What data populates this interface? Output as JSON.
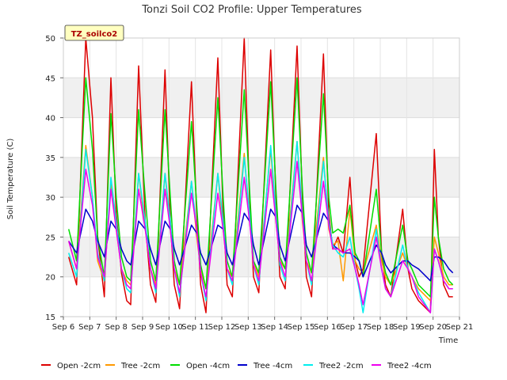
{
  "chart_data": {
    "type": "line",
    "title": "Tonzi Soil CO2 Profile: Upper Temperatures",
    "xlabel": "Time",
    "ylabel": "Soil Temperature (C)",
    "badge": "TZ_soilco2",
    "xlim": [
      6,
      21
    ],
    "ylim": [
      15,
      50
    ],
    "x_ticks": [
      {
        "v": 6,
        "label": "Sep 6"
      },
      {
        "v": 7,
        "label": "Sep 7"
      },
      {
        "v": 8,
        "label": "Sep 8"
      },
      {
        "v": 9,
        "label": "Sep 9"
      },
      {
        "v": 10,
        "label": "Sep 10"
      },
      {
        "v": 11,
        "label": "Sep 11"
      },
      {
        "v": 12,
        "label": "Sep 12"
      },
      {
        "v": 13,
        "label": "Sep 13"
      },
      {
        "v": 14,
        "label": "Sep 14"
      },
      {
        "v": 15,
        "label": "Sep 15"
      },
      {
        "v": 16,
        "label": "Sep 16"
      },
      {
        "v": 17,
        "label": "Sep 17"
      },
      {
        "v": 18,
        "label": "Sep 18"
      },
      {
        "v": 19,
        "label": "Sep 19"
      },
      {
        "v": 20,
        "label": "Sep 20"
      },
      {
        "v": 21,
        "label": "Sep 21"
      }
    ],
    "y_ticks": [
      {
        "v": 15,
        "label": "15"
      },
      {
        "v": 20,
        "label": "20"
      },
      {
        "v": 25,
        "label": "25"
      },
      {
        "v": 30,
        "label": "30"
      },
      {
        "v": 35,
        "label": "35"
      },
      {
        "v": 40,
        "label": "40"
      },
      {
        "v": 45,
        "label": "45"
      },
      {
        "v": 50,
        "label": "50"
      }
    ],
    "shaded_bands": [
      [
        20,
        25
      ],
      [
        30,
        35
      ],
      [
        40,
        45
      ]
    ],
    "grid": true,
    "legend_position": "bottom",
    "series": [
      {
        "name": "Open -2cm",
        "color": "#dd0000",
        "x": [
          6.2,
          6.5,
          6.85,
          7.1,
          7.3,
          7.55,
          7.8,
          8.0,
          8.2,
          8.4,
          8.55,
          8.85,
          9.1,
          9.3,
          9.5,
          9.85,
          10.05,
          10.2,
          10.4,
          10.85,
          11.05,
          11.2,
          11.4,
          11.85,
          12.05,
          12.2,
          12.4,
          12.85,
          13.05,
          13.2,
          13.4,
          13.85,
          14.05,
          14.2,
          14.4,
          14.85,
          15.05,
          15.2,
          15.4,
          15.85,
          16.05,
          16.2,
          16.4,
          16.6,
          16.85,
          17.05,
          17.2,
          17.35,
          17.85,
          18.05,
          18.2,
          18.4,
          18.85,
          19.05,
          19.2,
          19.45,
          19.9,
          20.05,
          20.2,
          20.4,
          20.6,
          20.75
        ],
        "y": [
          22.5,
          19,
          50,
          40,
          25,
          17.5,
          45,
          28,
          20.5,
          17,
          16.5,
          46.5,
          27,
          19,
          16.8,
          46,
          27,
          19,
          16,
          44.5,
          28,
          19,
          15.5,
          47.5,
          28,
          19,
          17.5,
          50,
          30,
          20,
          18,
          48.5,
          30,
          20,
          18.5,
          49,
          30,
          20,
          17.5,
          48,
          28,
          23.5,
          25,
          23,
          32.5,
          22,
          20,
          21,
          38,
          23,
          19,
          17.5,
          28.5,
          21,
          18.5,
          17,
          15.5,
          36,
          25,
          19,
          17.5,
          17.5
        ]
      },
      {
        "name": "Tree -2cm",
        "color": "#ff9900",
        "x": [
          6.2,
          6.5,
          6.85,
          7.1,
          7.3,
          7.55,
          7.8,
          8.0,
          8.2,
          8.4,
          8.55,
          8.85,
          9.1,
          9.3,
          9.5,
          9.85,
          10.05,
          10.2,
          10.4,
          10.85,
          11.05,
          11.2,
          11.4,
          11.85,
          12.05,
          12.2,
          12.4,
          12.85,
          13.05,
          13.2,
          13.4,
          13.85,
          14.05,
          14.2,
          14.4,
          14.85,
          15.05,
          15.2,
          15.4,
          15.85,
          16.05,
          16.2,
          16.4,
          16.6,
          16.85,
          17.05,
          17.2,
          17.35,
          17.85,
          18.05,
          18.2,
          18.4,
          18.85,
          19.05,
          19.2,
          19.45,
          19.9,
          20.05,
          20.2,
          20.4,
          20.6,
          20.75
        ],
        "y": [
          24.5,
          21,
          36.5,
          30,
          22,
          19.5,
          32,
          26,
          21,
          19.5,
          19,
          33,
          26,
          21,
          19,
          33,
          26,
          21,
          19,
          32,
          25,
          21,
          18.5,
          33,
          26,
          21,
          20,
          35.5,
          27,
          22,
          20,
          36,
          27,
          22,
          21,
          37,
          27,
          22,
          20.5,
          35,
          26,
          24,
          24.5,
          19.5,
          28.5,
          22,
          21,
          20.5,
          26.5,
          22,
          20,
          19,
          23,
          21,
          20,
          18.5,
          17,
          25,
          23,
          20,
          19,
          19
        ]
      },
      {
        "name": "Open -4cm",
        "color": "#00dd00",
        "x": [
          6.2,
          6.5,
          6.85,
          7.1,
          7.3,
          7.55,
          7.8,
          8.0,
          8.2,
          8.4,
          8.55,
          8.85,
          9.1,
          9.3,
          9.5,
          9.85,
          10.05,
          10.2,
          10.4,
          10.85,
          11.05,
          11.2,
          11.4,
          11.85,
          12.05,
          12.2,
          12.4,
          12.85,
          13.05,
          13.2,
          13.4,
          13.85,
          14.05,
          14.2,
          14.4,
          14.85,
          15.05,
          15.2,
          15.4,
          15.85,
          16.05,
          16.2,
          16.4,
          16.6,
          16.85,
          17.05,
          17.2,
          17.35,
          17.85,
          18.05,
          18.2,
          18.4,
          18.85,
          19.05,
          19.2,
          19.45,
          19.9,
          20.05,
          20.2,
          20.4,
          20.6,
          20.75
        ],
        "y": [
          26,
          22,
          45,
          36,
          25,
          20,
          40.5,
          30,
          22.5,
          20,
          19.5,
          41,
          30,
          22,
          19.5,
          41,
          30,
          22,
          19,
          39.5,
          29,
          21.5,
          18.5,
          42.5,
          30,
          22,
          20,
          43.5,
          31,
          22,
          20.5,
          44.5,
          31,
          22.5,
          21,
          45,
          31,
          23,
          20.5,
          43,
          30,
          25.5,
          26,
          25.5,
          29,
          23,
          22,
          20,
          31,
          23,
          20.5,
          19,
          26.5,
          22,
          21,
          19,
          17.5,
          30,
          25,
          21,
          19.5,
          19
        ]
      },
      {
        "name": "Tree -4cm",
        "color": "#0000cc",
        "x": [
          6.2,
          6.5,
          6.85,
          7.1,
          7.3,
          7.55,
          7.8,
          8.0,
          8.2,
          8.4,
          8.55,
          8.85,
          9.1,
          9.3,
          9.5,
          9.85,
          10.05,
          10.2,
          10.4,
          10.85,
          11.05,
          11.2,
          11.4,
          11.85,
          12.05,
          12.2,
          12.4,
          12.85,
          13.05,
          13.2,
          13.4,
          13.85,
          14.05,
          14.2,
          14.4,
          14.85,
          15.05,
          15.2,
          15.4,
          15.85,
          16.05,
          16.2,
          16.4,
          16.6,
          16.85,
          17.05,
          17.2,
          17.35,
          17.85,
          18.05,
          18.2,
          18.4,
          18.85,
          19.05,
          19.2,
          19.45,
          19.9,
          20.05,
          20.2,
          20.4,
          20.6,
          20.75
        ],
        "y": [
          24.5,
          23,
          28.5,
          27,
          24.5,
          22.5,
          27,
          26,
          23.5,
          22,
          21.5,
          27,
          26,
          23.5,
          21.5,
          27,
          26,
          23.5,
          21.5,
          26.5,
          25.5,
          23,
          21.5,
          26.5,
          26,
          23,
          21.5,
          28,
          27,
          24,
          21.5,
          28.5,
          27.5,
          24,
          22,
          29,
          28,
          24,
          22.5,
          28,
          27,
          24,
          23.5,
          23,
          23,
          22.5,
          22,
          20,
          24,
          23,
          21.5,
          20.5,
          22,
          22,
          21.5,
          21,
          19.5,
          22.5,
          22.5,
          22,
          21,
          20.5
        ]
      },
      {
        "name": "Tree2 -2cm",
        "color": "#00eeee",
        "x": [
          6.2,
          6.5,
          6.85,
          7.1,
          7.3,
          7.55,
          7.8,
          8.0,
          8.2,
          8.4,
          8.55,
          8.85,
          9.1,
          9.3,
          9.5,
          9.85,
          10.05,
          10.2,
          10.4,
          10.85,
          11.05,
          11.2,
          11.4,
          11.85,
          12.05,
          12.2,
          12.4,
          12.85,
          13.05,
          13.2,
          13.4,
          13.85,
          14.05,
          14.2,
          14.4,
          14.85,
          15.05,
          15.2,
          15.4,
          15.85,
          16.05,
          16.2,
          16.4,
          16.6,
          16.85,
          17.05,
          17.2,
          17.35,
          17.85,
          18.05,
          18.2,
          18.4,
          18.85,
          19.05,
          19.2,
          19.45,
          19.9,
          20.05,
          20.2,
          20.4,
          20.6,
          20.75
        ],
        "y": [
          23,
          20,
          36,
          30,
          23,
          19.5,
          32.5,
          27,
          21,
          18.5,
          18,
          33,
          27,
          21,
          18,
          33,
          27,
          21,
          17.5,
          32,
          26,
          20.5,
          17,
          33,
          27,
          21,
          19,
          35,
          28,
          21.5,
          19,
          36.5,
          28,
          21.5,
          19.5,
          37,
          28,
          22,
          19,
          34.5,
          27,
          24,
          23,
          22.5,
          25,
          21,
          18.5,
          15.5,
          26,
          21,
          18.5,
          17.5,
          24,
          21,
          20,
          18,
          15.5,
          23.5,
          22,
          19.5,
          18.5,
          18.5
        ]
      },
      {
        "name": "Tree2 -4cm",
        "color": "#ee00ee",
        "x": [
          6.2,
          6.5,
          6.85,
          7.1,
          7.3,
          7.55,
          7.8,
          8.0,
          8.2,
          8.4,
          8.55,
          8.85,
          9.1,
          9.3,
          9.5,
          9.85,
          10.05,
          10.2,
          10.4,
          10.85,
          11.05,
          11.2,
          11.4,
          11.85,
          12.05,
          12.2,
          12.4,
          12.85,
          13.05,
          13.2,
          13.4,
          13.85,
          14.05,
          14.2,
          14.4,
          14.85,
          15.05,
          15.2,
          15.4,
          15.85,
          16.05,
          16.2,
          16.4,
          16.6,
          16.85,
          17.05,
          17.2,
          17.35,
          17.85,
          18.05,
          18.2,
          18.4,
          18.85,
          19.05,
          19.2,
          19.45,
          19.9,
          20.05,
          20.2,
          20.4,
          20.6,
          20.75
        ],
        "y": [
          24.5,
          21,
          33.5,
          29,
          22.5,
          20,
          31,
          26,
          21,
          19,
          18.5,
          31,
          26,
          21,
          18.5,
          31,
          26,
          21,
          18,
          30.5,
          26,
          20.5,
          17.5,
          30.5,
          26,
          21,
          19.5,
          32.5,
          27,
          21.5,
          19.5,
          33.5,
          27,
          22,
          20,
          34.5,
          27.5,
          22,
          19.5,
          32,
          26.5,
          23.5,
          23.5,
          23,
          23.5,
          21,
          19,
          16.5,
          25,
          21,
          18.5,
          17.5,
          22,
          21,
          20,
          17.5,
          15.5,
          23.5,
          22,
          19.5,
          18.5,
          18.5
        ]
      }
    ]
  }
}
